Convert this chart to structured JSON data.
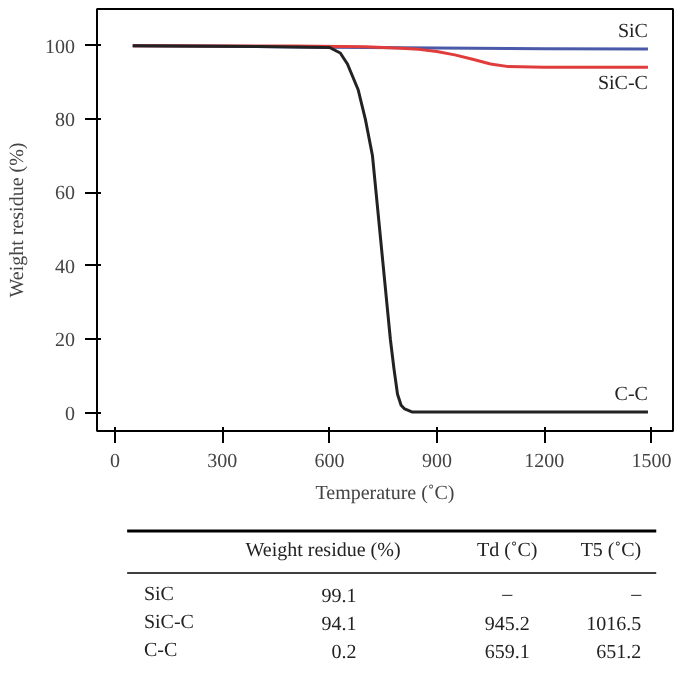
{
  "chart_data": {
    "type": "line",
    "xlabel": "Temperature (˚C)",
    "ylabel": "Weight residue (%)",
    "xlim": [
      -50,
      1560
    ],
    "ylim": [
      -5,
      110
    ],
    "xticks": [
      0,
      300,
      600,
      900,
      1200,
      1500
    ],
    "yticks": [
      0,
      20,
      40,
      60,
      80,
      100
    ],
    "grid": false,
    "legend": false,
    "marker": "none",
    "line_style": "solid",
    "series": [
      {
        "name": "SiC",
        "color": "#4a5aa8",
        "x": [
          50,
          600,
          900,
          1200,
          1490
        ],
        "values": [
          100,
          99.6,
          99.4,
          99.2,
          99.1
        ]
      },
      {
        "name": "SiC-C",
        "color": "#e03c3c",
        "x": [
          50,
          500,
          700,
          800,
          850,
          900,
          950,
          1000,
          1050,
          1100,
          1200,
          1490
        ],
        "values": [
          100,
          99.9,
          99.7,
          99.3,
          99,
          98.4,
          97.5,
          96.3,
          95,
          94.3,
          94.1,
          94.1
        ]
      },
      {
        "name": "C-C",
        "color": "#222222",
        "x": [
          50,
          400,
          600,
          630,
          650,
          680,
          700,
          720,
          730,
          740,
          750,
          760,
          770,
          780,
          790,
          800,
          810,
          830,
          900,
          1490
        ],
        "values": [
          100,
          99.8,
          99.5,
          98,
          95,
          88,
          80,
          70,
          60,
          50,
          40,
          30,
          20,
          12,
          5,
          2,
          1,
          0.2,
          0.2,
          0.2
        ]
      }
    ],
    "annotations": [
      "Weight residue (%)",
      "Td (˚C)",
      "T5 (˚C)",
      "SiC",
      "99.1",
      "–",
      "–",
      "SiC-C",
      "94.1",
      "945.2",
      "1016.5",
      "C-C",
      "0.2",
      "659.1",
      "651.2"
    ]
  }
}
